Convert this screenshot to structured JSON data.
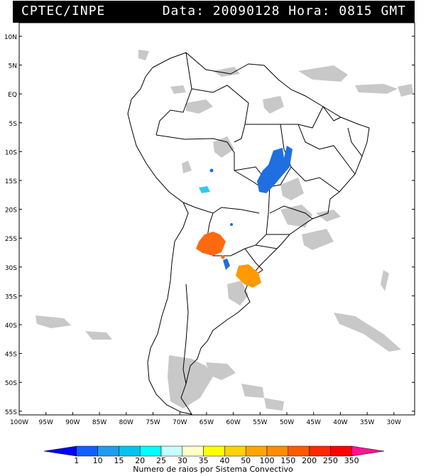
{
  "header": {
    "source": "CPTEC/INPE",
    "datetime": "Data: 20090128 Hora: 0815 GMT"
  },
  "map": {
    "y_ticks": [
      "10N",
      "5N",
      "EQ",
      "5S",
      "10S",
      "15S",
      "20S",
      "25S",
      "30S",
      "35S",
      "40S",
      "45S",
      "50S",
      "55S"
    ],
    "x_ticks": [
      "100W",
      "95W",
      "90W",
      "85W",
      "80W",
      "75W",
      "70W",
      "65W",
      "60W",
      "55W",
      "50W",
      "45W",
      "40W",
      "35W",
      "30W"
    ],
    "lat_range": [
      -56,
      13
    ],
    "lon_range": [
      -100,
      -26
    ]
  },
  "legend": {
    "values": [
      "1",
      "10",
      "15",
      "20",
      "25",
      "30",
      "35",
      "40",
      "50",
      "100",
      "150",
      "200",
      "250",
      "350"
    ],
    "colors": [
      "#0000ff",
      "#1060ff",
      "#1f9cf0",
      "#00c4f0",
      "#00ffff",
      "#c8ffff",
      "#ffffc8",
      "#ffff00",
      "#ffd200",
      "#ffa500",
      "#ff8c00",
      "#ff5a00",
      "#ff2800",
      "#ff0000",
      "#ff1493"
    ],
    "label": "Numero de raios por Sistema Convectivo"
  },
  "colors": {
    "cloud_gray": "#c8c8c8",
    "blue_cell": "#1f6fe0",
    "cyan_cell": "#33c8f0",
    "orange_cell": "#ff6a10",
    "amber_cell": "#ff9a00"
  }
}
